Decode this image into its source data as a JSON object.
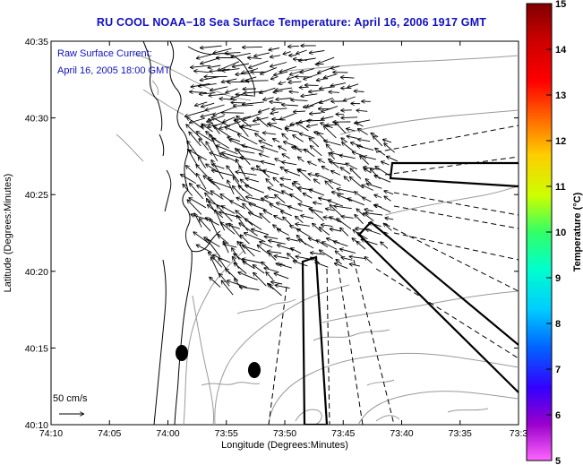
{
  "title": "RU COOL  NOAA−18  Sea Surface Temperature:  April 16, 2006 1917 GMT",
  "legend": {
    "line1": "Raw Surface Current:",
    "line2": "April 16, 2005 18:00 GMT",
    "scale_label": "50 cm/s"
  },
  "axes": {
    "xlabel": "Longitude (Degrees:Minutes)",
    "ylabel": "Latitude (Degrees:Minutes)",
    "x_ticks": [
      "74:10",
      "74:05",
      "74:00",
      "73:55",
      "73:50",
      "73:45",
      "73:40",
      "73:35",
      "73:3"
    ],
    "y_ticks": [
      "40:35",
      "40:30",
      "40:25",
      "40:20",
      "40:15",
      "40:10"
    ]
  },
  "colorbar": {
    "label": "Temperature (°C)",
    "ticks": [
      "15",
      "14",
      "13",
      "12",
      "11",
      "10",
      "9",
      "8",
      "7",
      "6",
      "5"
    ],
    "colors": [
      "#ff66ff",
      "#9900cc",
      "#3300ff",
      "#0066ff",
      "#00ccff",
      "#00ffcc",
      "#33ff66",
      "#ccff00",
      "#ffcc00",
      "#ff6600",
      "#ff0000",
      "#cc0000",
      "#800000"
    ]
  }
}
